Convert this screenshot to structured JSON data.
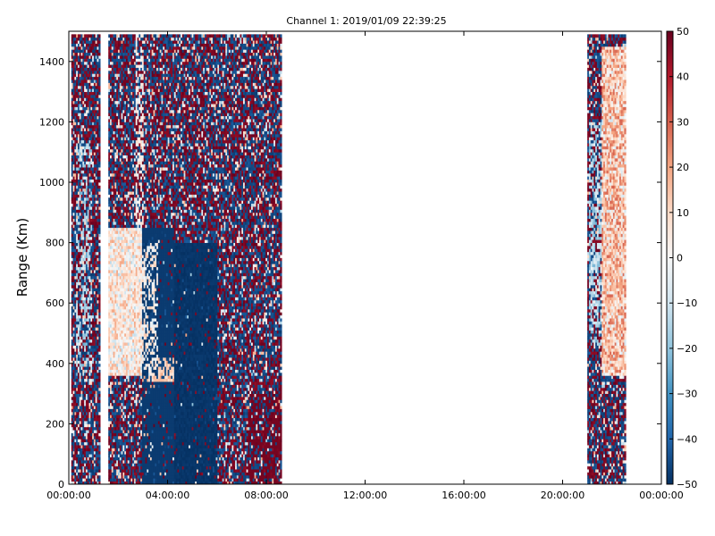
{
  "chart_data": {
    "type": "heatmap",
    "title": "Channel 1: 2019/01/09 22:39:25",
    "ylabel": "Range (Km)",
    "xlabel": "",
    "x_ticks": [
      "00:00:00",
      "04:00:00",
      "08:00:00",
      "12:00:00",
      "16:00:00",
      "20:00:00",
      "00:00:00"
    ],
    "x_range_hours": [
      0,
      24
    ],
    "y_ticks": [
      0,
      200,
      400,
      600,
      800,
      1000,
      1200,
      1400
    ],
    "y_range": [
      0,
      1500
    ],
    "grid": false,
    "colormap": "RdBu_r",
    "colors": {
      "low": "#053061",
      "mid": "#f7f7f7",
      "high": "#67001f"
    },
    "colorbar": {
      "ticks": [
        50,
        40,
        30,
        20,
        10,
        0,
        -10,
        -20,
        -30,
        -40,
        -50
      ],
      "range": [
        -50,
        50
      ]
    },
    "data_segments_hours": [
      {
        "start": 0.0,
        "end": 1.25,
        "description": "noisy with blue/red speckle, light values near bottom"
      },
      {
        "start": 1.6,
        "end": 8.6,
        "description": "main echo block; positive (light red) structure at 1.6–2.8 h, range 350–850 km; strong negative band 2.8–6.0 h below 800 km"
      },
      {
        "start": 21.0,
        "end": 22.5,
        "description": "late segment with positive values 21.6–22.5 h, range 350–1450 km"
      }
    ]
  }
}
